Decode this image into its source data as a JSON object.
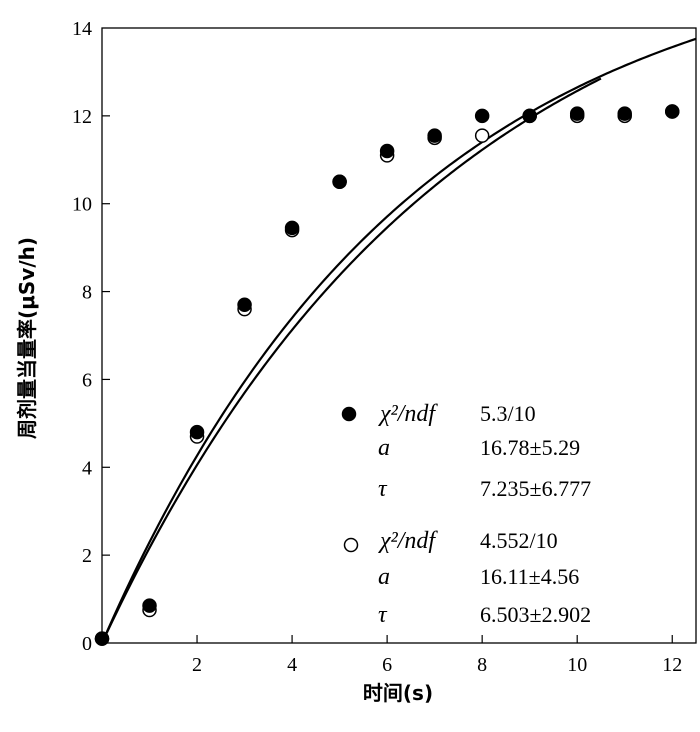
{
  "chart_data": {
    "type": "scatter",
    "xlabel": "时间(s)",
    "ylabel": "周剂量当量率(μSv/h)",
    "xlim": [
      0,
      12.5
    ],
    "ylim": [
      0,
      14
    ],
    "x_ticks": [
      2,
      4,
      6,
      8,
      10,
      12
    ],
    "y_ticks": [
      0,
      2,
      4,
      6,
      8,
      10,
      12,
      14
    ],
    "series": [
      {
        "marker": "filled-circle",
        "x": [
          0,
          1,
          2,
          3,
          4,
          5,
          6,
          7,
          8,
          9,
          10,
          11,
          12
        ],
        "y": [
          0.1,
          0.85,
          4.8,
          7.7,
          9.45,
          10.5,
          11.2,
          11.55,
          12.0,
          12.0,
          12.05,
          12.05,
          12.1
        ],
        "fit": {
          "a": 16.78,
          "tau": 7.235,
          "x_max": 10.5
        },
        "legend": {
          "chi_label": "χ²/ndf",
          "chi_value": "5.3/10",
          "a_label": "a",
          "a_value": "16.78±5.29",
          "tau_label": "τ",
          "tau_value": "7.235±6.777"
        }
      },
      {
        "marker": "open-circle",
        "x": [
          0,
          1,
          2,
          3,
          4,
          5,
          6,
          7,
          8,
          9,
          10,
          11,
          12
        ],
        "y": [
          0.1,
          0.75,
          4.7,
          7.6,
          9.4,
          10.5,
          11.1,
          11.5,
          11.55,
          12.0,
          12.0,
          12.0,
          12.1
        ],
        "fit": {
          "a": 16.11,
          "tau": 6.503,
          "x_max": 12.5
        },
        "legend": {
          "chi_label": "χ²/ndf",
          "chi_value": "4.552/10",
          "a_label": "a",
          "a_value": "16.11±4.56",
          "tau_label": "τ",
          "tau_value": "6.503±2.902"
        }
      }
    ]
  }
}
